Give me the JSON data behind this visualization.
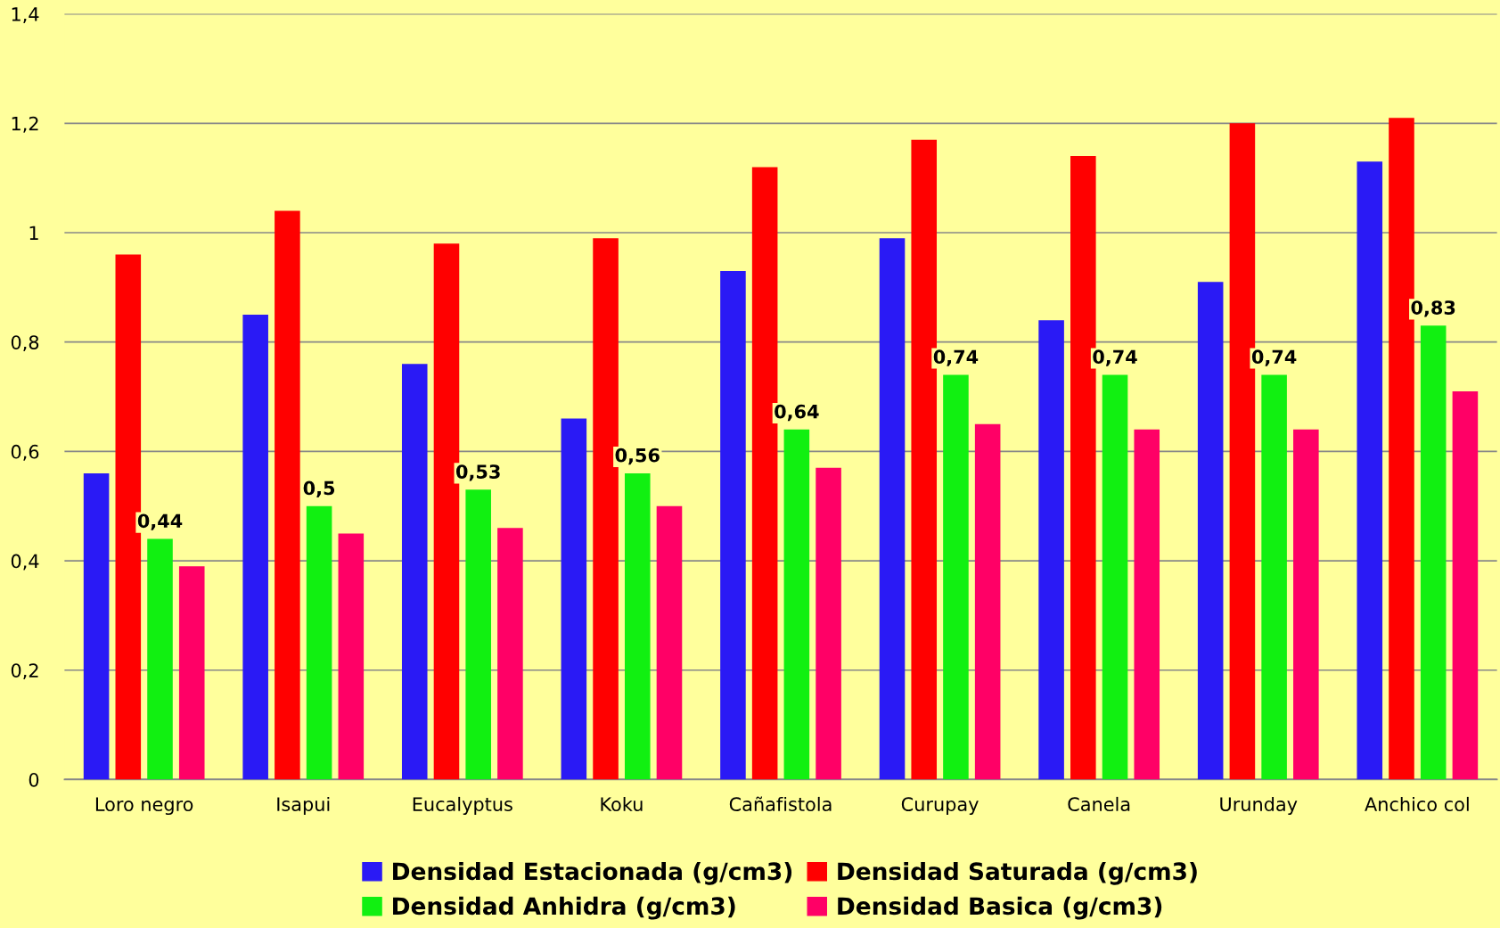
{
  "chart_data": {
    "type": "bar",
    "categories": [
      "Loro negro",
      "Isapui",
      "Eucalyptus",
      "Koku",
      "Cañafistola",
      "Curupay",
      "Canela",
      "Urunday",
      "Anchico col"
    ],
    "series": [
      {
        "name": "Densidad Estacionada (g/cm3)",
        "color": "#2a1af5",
        "values": [
          0.56,
          0.85,
          0.76,
          0.66,
          0.93,
          0.99,
          0.84,
          0.91,
          1.13
        ]
      },
      {
        "name": "Densidad Saturada (g/cm3)",
        "color": "#ff0000",
        "values": [
          0.96,
          1.04,
          0.98,
          0.99,
          1.12,
          1.17,
          1.14,
          1.2,
          1.21
        ]
      },
      {
        "name": "Densidad Anhidra (g/cm3)",
        "color": "#11f011",
        "values": [
          0.44,
          0.5,
          0.53,
          0.56,
          0.64,
          0.74,
          0.74,
          0.74,
          0.83
        ],
        "value_labels": [
          "0,44",
          "0,5",
          "0,53",
          "0,56",
          "0,64",
          "0,74",
          "0,74",
          "0,74",
          "0,83"
        ]
      },
      {
        "name": "Densidad Basica (g/cm3)",
        "color": "#ff0066",
        "values": [
          0.39,
          0.45,
          0.46,
          0.5,
          0.57,
          0.65,
          0.64,
          0.64,
          0.71
        ]
      }
    ],
    "ylim": [
      0,
      1.4
    ],
    "yticks": [
      0,
      {
        "value": 0.2,
        "label": "0,2"
      },
      {
        "value": 0.4,
        "label": "0,4"
      },
      {
        "value": 0.6,
        "label": "0,6"
      },
      {
        "value": 0.8,
        "label": "0,8"
      },
      1,
      {
        "value": 1.2,
        "label": "1,2"
      },
      {
        "value": 1.4,
        "label": "1,4"
      }
    ],
    "grid": "y",
    "legend": "bottom"
  }
}
